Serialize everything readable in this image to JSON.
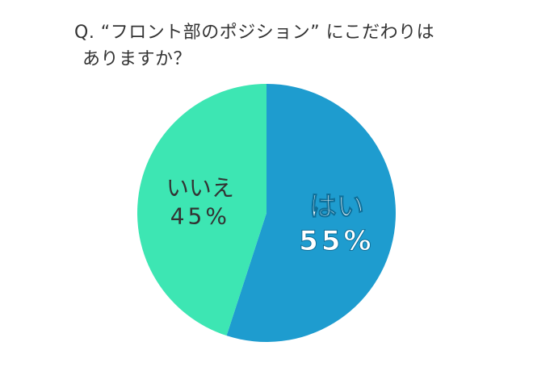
{
  "title": {
    "line1": "Q. “フロント部のポジション” にこだわりは",
    "line2": "ありますか？"
  },
  "chart_data": {
    "type": "pie",
    "title": "Q. “フロント部のポジション” にこだわりは ありますか？",
    "slices": [
      {
        "label": "はい",
        "value": 55,
        "value_label": "55%",
        "color": "#1e9ccf",
        "label_color": "#ffffff"
      },
      {
        "label": "いいえ",
        "value": 45,
        "value_label": "45%",
        "color": "#3de6b3",
        "label_color": "#333333"
      }
    ],
    "start": "12 o'clock",
    "direction": "clockwise"
  }
}
